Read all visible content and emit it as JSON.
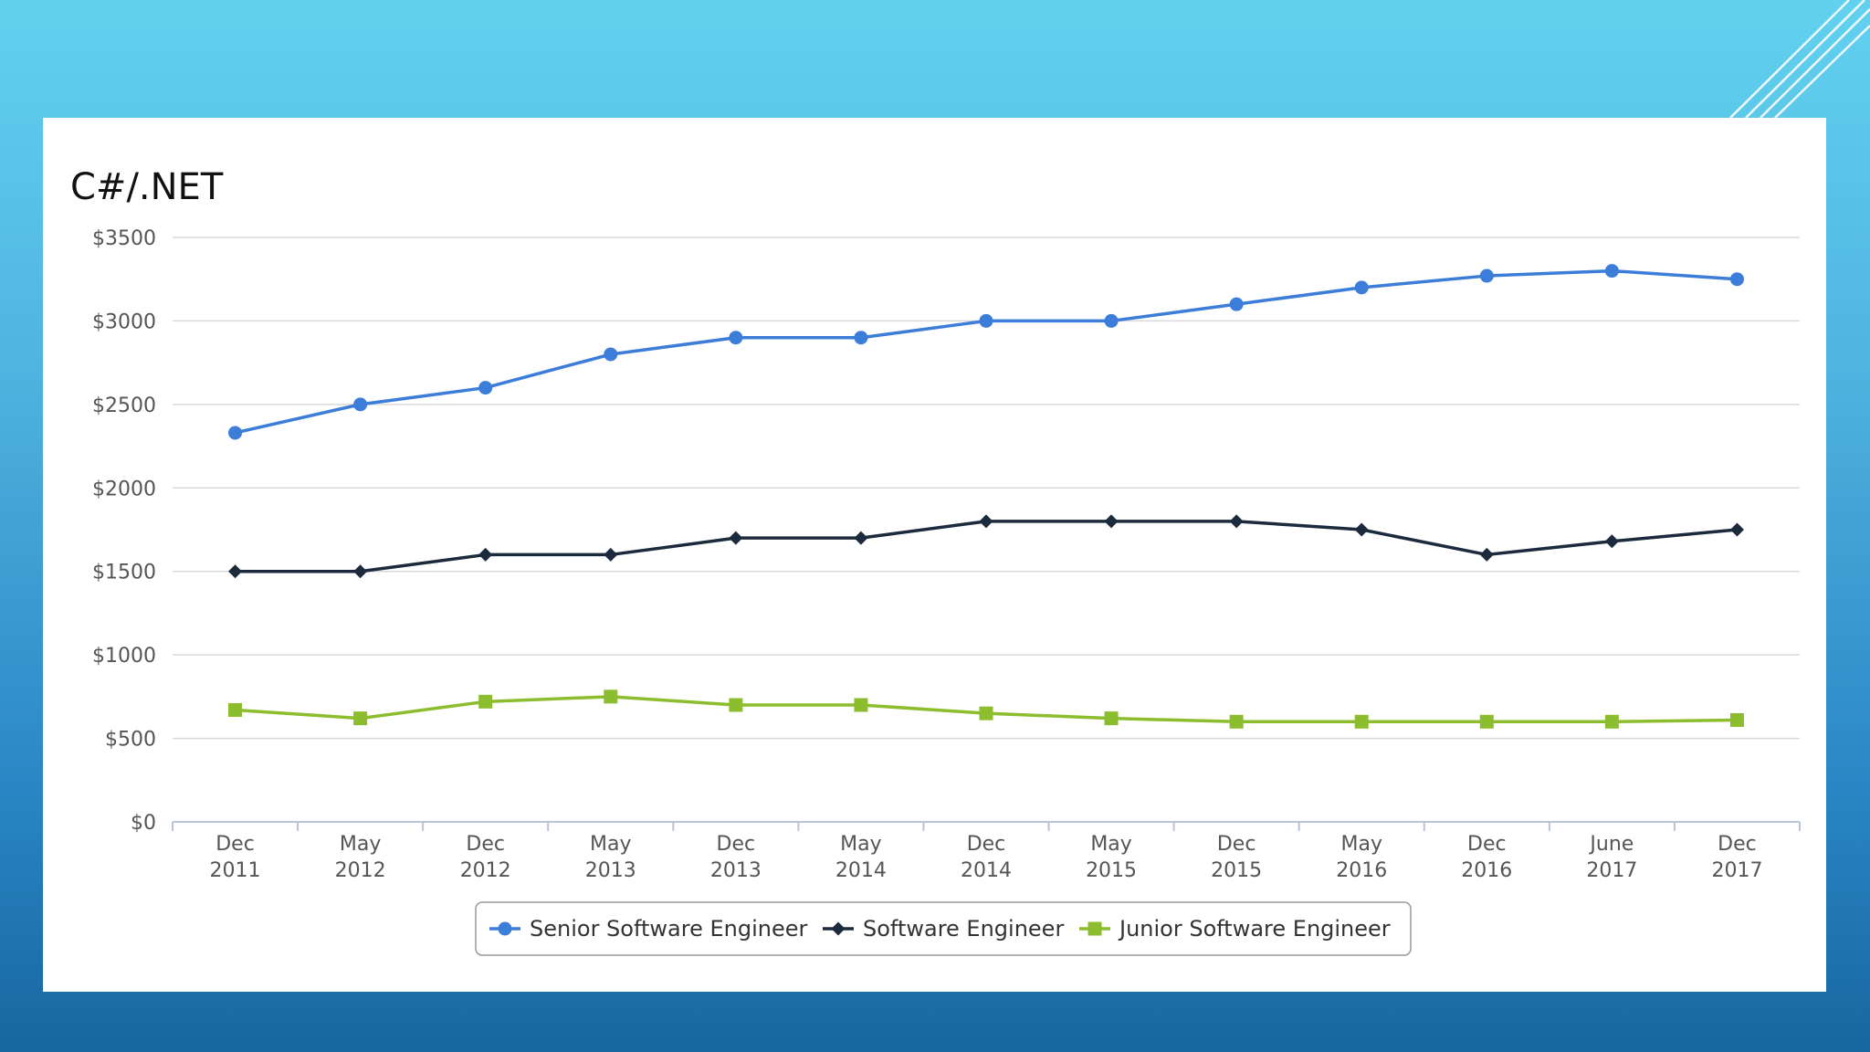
{
  "colors": {
    "senior": "#3b7dd8",
    "mid": "#1b2a3d",
    "junior": "#8cbd2e",
    "grid": "#d9d9d9",
    "axis": "#b8c5d6",
    "text": "#555555"
  },
  "chart_data": {
    "type": "line",
    "title": "C#/.NET",
    "xlabel": "",
    "ylabel": "",
    "ylim": [
      0,
      3500
    ],
    "yticks": [
      "$0",
      "$500",
      "$1000",
      "$1500",
      "$2000",
      "$2500",
      "$3000",
      "$3500"
    ],
    "ytick_values": [
      0,
      500,
      1000,
      1500,
      2000,
      2500,
      3000,
      3500
    ],
    "grid": true,
    "legend_position": "bottom-center",
    "categories": [
      [
        "Dec",
        "2011"
      ],
      [
        "May",
        "2012"
      ],
      [
        "Dec",
        "2012"
      ],
      [
        "May",
        "2013"
      ],
      [
        "Dec",
        "2013"
      ],
      [
        "May",
        "2014"
      ],
      [
        "Dec",
        "2014"
      ],
      [
        "May",
        "2015"
      ],
      [
        "Dec",
        "2015"
      ],
      [
        "May",
        "2016"
      ],
      [
        "Dec",
        "2016"
      ],
      [
        "June",
        "2017"
      ],
      [
        "Dec",
        "2017"
      ]
    ],
    "series": [
      {
        "name": "Senior Software Engineer",
        "marker": "circle",
        "color": "#3b7dd8",
        "values": [
          2330,
          2500,
          2600,
          2800,
          2900,
          2900,
          3000,
          3000,
          3100,
          3200,
          3270,
          3300,
          3250
        ]
      },
      {
        "name": "Software Engineer",
        "marker": "diamond",
        "color": "#1b2a3d",
        "values": [
          1500,
          1500,
          1600,
          1600,
          1700,
          1700,
          1800,
          1800,
          1800,
          1750,
          1600,
          1680,
          1750
        ]
      },
      {
        "name": "Junior Software Engineer",
        "marker": "square",
        "color": "#8cbd2e",
        "values": [
          670,
          620,
          720,
          750,
          700,
          700,
          650,
          620,
          600,
          600,
          600,
          600,
          610
        ]
      }
    ]
  }
}
